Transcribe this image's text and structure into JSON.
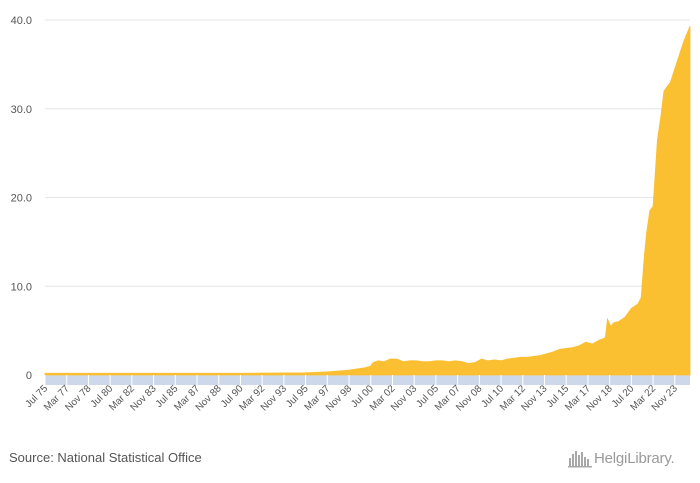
{
  "chart_data": {
    "type": "area",
    "title": "",
    "xlabel": "",
    "ylabel": "",
    "ylim": [
      0,
      40
    ],
    "yticks": [
      "0",
      "10.0",
      "20.0",
      "30.0",
      "40.0"
    ],
    "xticks": [
      "Jul 75",
      "Mar 77",
      "Nov 78",
      "Jul 80",
      "Mar 82",
      "Nov 83",
      "Jul 85",
      "Mar 87",
      "Nov 88",
      "Jul 90",
      "Mar 92",
      "Nov 93",
      "Jul 95",
      "Mar 97",
      "Nov 98",
      "Jul 00",
      "Mar 02",
      "Nov 03",
      "Jul 05",
      "Mar 07",
      "Nov 08",
      "Jul 10",
      "Mar 12",
      "Nov 13",
      "Jul 15",
      "Mar 17",
      "Nov 18",
      "Jul 20",
      "Mar 22",
      "Nov 23"
    ],
    "grid": true,
    "legend": "none",
    "series": [
      {
        "color": "#fbbf32",
        "x": [
          "Jul 75",
          "Jul 90",
          "Jul 95",
          "Mar 97",
          "Nov 98",
          "Jul 99",
          "Jan 00",
          "Jul 00",
          "Sep 00",
          "Feb 01",
          "Jul 01",
          "Jan 02",
          "Jul 02",
          "Jan 03",
          "Jul 03",
          "Jan 04",
          "Jul 04",
          "Jan 05",
          "Jul 05",
          "Jan 06",
          "Jul 06",
          "Jan 07",
          "Jul 07",
          "Jan 08",
          "Jul 08",
          "Jan 09",
          "Jul 09",
          "Jan 10",
          "Jul 10",
          "Jan 11",
          "Jul 11",
          "Jan 12",
          "Jul 12",
          "Jan 13",
          "Jul 13",
          "Jan 14",
          "Jul 14",
          "Jan 15",
          "Jul 15",
          "Jan 16",
          "Jul 16",
          "Jan 17",
          "Jul 17",
          "Jan 18",
          "Jul 18",
          "Sep 18",
          "Dec 18",
          "Mar 19",
          "Jul 19",
          "Jan 20",
          "Jul 20",
          "Jan 21",
          "Apr 21",
          "Jul 21",
          "Sep 21",
          "Dec 21",
          "Mar 22",
          "Jul 22",
          "Oct 22",
          "Jan 23",
          "Jul 23",
          "Nov 23",
          "Mar 24",
          "Jul 24",
          "Nov 24",
          "Jan 25"
        ],
        "values": [
          0.2,
          0.2,
          0.25,
          0.35,
          0.55,
          0.7,
          0.8,
          1.0,
          1.4,
          1.6,
          1.5,
          1.8,
          1.8,
          1.5,
          1.6,
          1.6,
          1.5,
          1.5,
          1.6,
          1.6,
          1.5,
          1.6,
          1.5,
          1.3,
          1.4,
          1.8,
          1.6,
          1.7,
          1.6,
          1.8,
          1.9,
          2.0,
          2.0,
          2.1,
          2.2,
          2.4,
          2.6,
          2.9,
          3.0,
          3.1,
          3.3,
          3.7,
          3.5,
          3.9,
          4.2,
          6.3,
          5.5,
          5.9,
          6.0,
          6.5,
          7.5,
          8.0,
          8.7,
          13.5,
          16.0,
          18.5,
          19.0,
          26.5,
          29.0,
          32.0,
          33.0,
          34.5,
          36.0,
          37.5,
          38.7,
          39.3
        ]
      }
    ]
  },
  "source": "Source: National Statistical Office",
  "logo": {
    "icon": "city-skyline-icon",
    "brand": "Helgi",
    "brand_suffix": "Library."
  }
}
